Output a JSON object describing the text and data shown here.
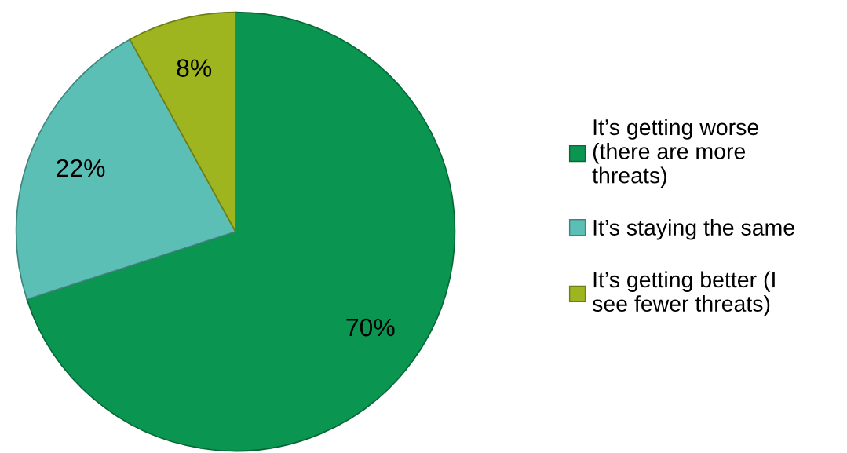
{
  "chart_data": {
    "type": "pie",
    "categories": [
      "It’s getting worse\n(there are more\nthreats)",
      "It’s staying the same",
      "It’s getting better (I\nsee fewer threats)"
    ],
    "values": [
      70,
      22,
      8
    ],
    "colors": [
      "#0a9650",
      "#5bbfb5",
      "#9fb520"
    ],
    "value_labels": [
      "70%",
      "22%",
      "8%"
    ],
    "legend": "right"
  }
}
